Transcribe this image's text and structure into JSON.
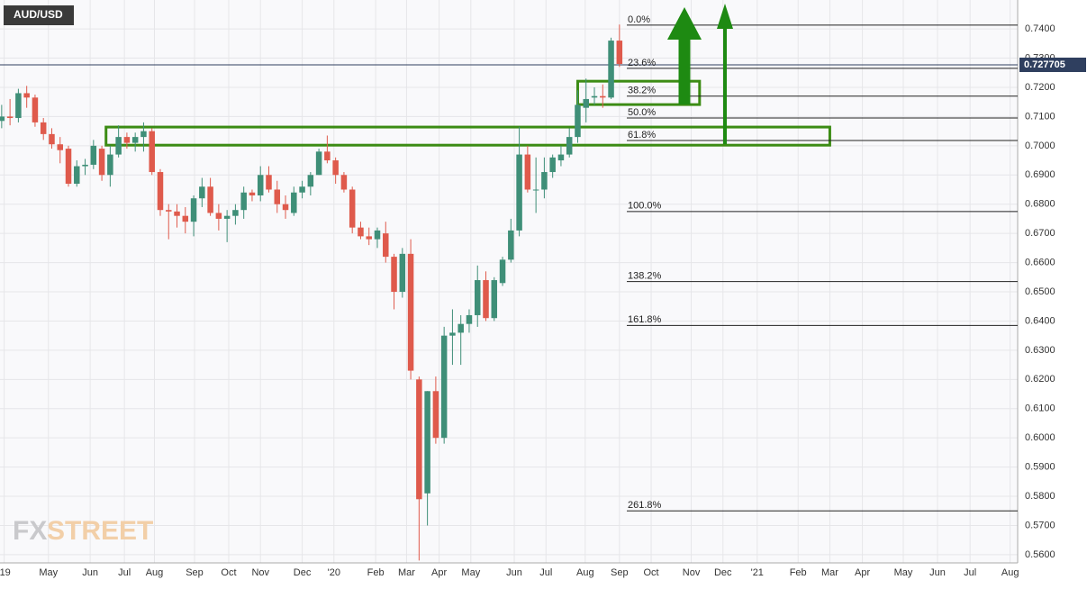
{
  "chart_data": {
    "type": "candlestick",
    "title": "AUD/USD",
    "watermark": [
      "FX",
      "STREET"
    ],
    "up_color": "#3f8f78",
    "down_color": "#df5a4c",
    "zone_color": "#3c8c14",
    "last_color": "#2f3f5f",
    "x": [
      0,
      1,
      2,
      3,
      4,
      5,
      6,
      7,
      8,
      9,
      10,
      11,
      12,
      13,
      14,
      15,
      16,
      17,
      18,
      19,
      20,
      21,
      22,
      23,
      24,
      25,
      26,
      27,
      28,
      29,
      30,
      31,
      32,
      33,
      34,
      35,
      36,
      37,
      38,
      39,
      40,
      41,
      42,
      43,
      44,
      45,
      46,
      47,
      48,
      49,
      50,
      51,
      52,
      53,
      54,
      55,
      56,
      57,
      58,
      59,
      60,
      61,
      62,
      63,
      64,
      65,
      66,
      67,
      68,
      69,
      70,
      71,
      72,
      73,
      74
    ],
    "open": [
      0.7085,
      0.71,
      0.7095,
      0.718,
      0.7165,
      0.708,
      0.704,
      0.7005,
      0.699,
      0.687,
      0.693,
      0.6935,
      0.699,
      0.69,
      0.697,
      0.703,
      0.701,
      0.703,
      0.705,
      0.691,
      0.678,
      0.6775,
      0.676,
      0.674,
      0.682,
      0.686,
      0.677,
      0.675,
      0.676,
      0.678,
      0.684,
      0.683,
      0.69,
      0.685,
      0.68,
      0.677,
      0.684,
      0.686,
      0.69,
      0.698,
      0.695,
      0.69,
      0.685,
      0.672,
      0.669,
      0.668,
      0.67,
      0.662,
      0.65,
      0.663,
      0.62,
      0.581,
      0.616,
      0.6,
      0.635,
      0.636,
      0.639,
      0.642,
      0.654,
      0.641,
      0.653,
      0.661,
      0.671,
      0.697,
      0.685,
      0.685,
      0.691,
      0.695,
      0.697,
      0.703,
      0.713,
      0.7165,
      0.717,
      0.7165,
      0.736
    ],
    "high": [
      0.714,
      0.716,
      0.7195,
      0.7205,
      0.7175,
      0.7095,
      0.706,
      0.703,
      0.7,
      0.695,
      0.6955,
      0.702,
      0.7,
      0.7,
      0.707,
      0.7045,
      0.7045,
      0.708,
      0.706,
      0.692,
      0.68,
      0.68,
      0.679,
      0.683,
      0.689,
      0.689,
      0.68,
      0.678,
      0.68,
      0.686,
      0.685,
      0.693,
      0.693,
      0.688,
      0.683,
      0.686,
      0.688,
      0.691,
      0.699,
      0.7035,
      0.696,
      0.691,
      0.686,
      0.674,
      0.672,
      0.672,
      0.674,
      0.663,
      0.665,
      0.668,
      0.621,
      0.616,
      0.621,
      0.638,
      0.644,
      0.642,
      0.644,
      0.659,
      0.657,
      0.655,
      0.662,
      0.675,
      0.7065,
      0.7,
      0.696,
      0.696,
      0.697,
      0.7,
      0.706,
      0.719,
      0.723,
      0.72,
      0.721,
      0.737,
      0.7415
    ],
    "low": [
      0.706,
      0.707,
      0.708,
      0.713,
      0.7065,
      0.702,
      0.699,
      0.694,
      0.686,
      0.686,
      0.69,
      0.692,
      0.688,
      0.686,
      0.696,
      0.699,
      0.698,
      0.698,
      0.69,
      0.676,
      0.668,
      0.672,
      0.67,
      0.669,
      0.679,
      0.676,
      0.671,
      0.667,
      0.673,
      0.675,
      0.681,
      0.681,
      0.684,
      0.677,
      0.675,
      0.676,
      0.682,
      0.683,
      0.69,
      0.694,
      0.687,
      0.684,
      0.67,
      0.668,
      0.666,
      0.665,
      0.66,
      0.644,
      0.648,
      0.62,
      0.558,
      0.57,
      0.598,
      0.598,
      0.625,
      0.625,
      0.636,
      0.638,
      0.64,
      0.64,
      0.652,
      0.66,
      0.669,
      0.684,
      0.677,
      0.682,
      0.689,
      0.693,
      0.696,
      0.701,
      0.708,
      0.714,
      0.713,
      0.716,
      0.727
    ],
    "close": [
      0.71,
      0.7095,
      0.718,
      0.7165,
      0.708,
      0.704,
      0.7005,
      0.6985,
      0.687,
      0.693,
      0.6935,
      0.7,
      0.69,
      0.697,
      0.703,
      0.701,
      0.703,
      0.705,
      0.691,
      0.678,
      0.6775,
      0.676,
      0.674,
      0.682,
      0.686,
      0.677,
      0.675,
      0.676,
      0.678,
      0.684,
      0.683,
      0.69,
      0.685,
      0.68,
      0.678,
      0.684,
      0.686,
      0.69,
      0.698,
      0.695,
      0.69,
      0.685,
      0.672,
      0.669,
      0.668,
      0.671,
      0.662,
      0.65,
      0.663,
      0.623,
      0.579,
      0.616,
      0.6,
      0.635,
      0.636,
      0.639,
      0.642,
      0.654,
      0.641,
      0.654,
      0.661,
      0.671,
      0.697,
      0.685,
      0.685,
      0.691,
      0.696,
      0.697,
      0.703,
      0.714,
      0.716,
      0.717,
      0.7165,
      0.736,
      0.728
    ],
    "xlim": [
      -0.2,
      121.7
    ],
    "xticks": [
      {
        "value": 0.3,
        "label": "'19"
      },
      {
        "value": 5.6,
        "label": "May"
      },
      {
        "value": 10.6,
        "label": "Jun"
      },
      {
        "value": 14.7,
        "label": "Jul"
      },
      {
        "value": 18.3,
        "label": "Aug"
      },
      {
        "value": 23.1,
        "label": "Sep"
      },
      {
        "value": 27.2,
        "label": "Oct"
      },
      {
        "value": 31.0,
        "label": "Nov"
      },
      {
        "value": 36.0,
        "label": "Dec"
      },
      {
        "value": 39.8,
        "label": "'20"
      },
      {
        "value": 44.8,
        "label": "Feb"
      },
      {
        "value": 48.5,
        "label": "Mar"
      },
      {
        "value": 52.4,
        "label": "Apr"
      },
      {
        "value": 56.2,
        "label": "May"
      },
      {
        "value": 61.4,
        "label": "Jun"
      },
      {
        "value": 65.2,
        "label": "Jul"
      },
      {
        "value": 69.9,
        "label": "Aug"
      },
      {
        "value": 74.0,
        "label": "Sep"
      },
      {
        "value": 77.8,
        "label": "Oct"
      },
      {
        "value": 82.6,
        "label": "Nov"
      },
      {
        "value": 86.4,
        "label": "Dec"
      },
      {
        "value": 90.5,
        "label": "'21"
      },
      {
        "value": 95.4,
        "label": "Feb"
      },
      {
        "value": 99.2,
        "label": "Mar"
      },
      {
        "value": 103.1,
        "label": "Apr"
      },
      {
        "value": 108.0,
        "label": "May"
      },
      {
        "value": 112.1,
        "label": "Jun"
      },
      {
        "value": 116.0,
        "label": "Jul"
      },
      {
        "value": 120.8,
        "label": "Aug"
      }
    ],
    "ylim": [
      0.5572,
      0.7499
    ],
    "yticks": [
      {
        "value": 0.56,
        "label": "0.5600"
      },
      {
        "value": 0.57,
        "label": "0.5700"
      },
      {
        "value": 0.58,
        "label": "0.5800"
      },
      {
        "value": 0.59,
        "label": "0.5900"
      },
      {
        "value": 0.6,
        "label": "0.6000"
      },
      {
        "value": 0.61,
        "label": "0.6100"
      },
      {
        "value": 0.62,
        "label": "0.6200"
      },
      {
        "value": 0.63,
        "label": "0.6300"
      },
      {
        "value": 0.64,
        "label": "0.6400"
      },
      {
        "value": 0.65,
        "label": "0.6500"
      },
      {
        "value": 0.66,
        "label": "0.6600"
      },
      {
        "value": 0.67,
        "label": "0.6700"
      },
      {
        "value": 0.68,
        "label": "0.6800"
      },
      {
        "value": 0.69,
        "label": "0.6900"
      },
      {
        "value": 0.7,
        "label": "0.7000"
      },
      {
        "value": 0.71,
        "label": "0.7100"
      },
      {
        "value": 0.72,
        "label": "0.7200"
      },
      {
        "value": 0.73,
        "label": "0.7300"
      },
      {
        "value": 0.74,
        "label": "0.7400"
      }
    ],
    "grid": true,
    "last_price": 0.727705,
    "fib_levels": [
      {
        "label": "0.0%",
        "value": 0.7413
      },
      {
        "label": "23.6%",
        "value": 0.7265
      },
      {
        "label": "38.2%",
        "value": 0.717
      },
      {
        "label": "50.0%",
        "value": 0.7095
      },
      {
        "label": "61.8%",
        "value": 0.7018
      },
      {
        "label": "100.0%",
        "value": 0.6775
      },
      {
        "label": "138.2%",
        "value": 0.6535
      },
      {
        "label": "161.8%",
        "value": 0.6385
      },
      {
        "label": "261.8%",
        "value": 0.575
      }
    ],
    "zones": [
      {
        "x": [
          12.5,
          99.2
        ],
        "y": [
          0.7002,
          0.7064
        ]
      },
      {
        "x": [
          69.0,
          83.6
        ],
        "y": [
          0.7141,
          0.7221
        ]
      }
    ]
  }
}
